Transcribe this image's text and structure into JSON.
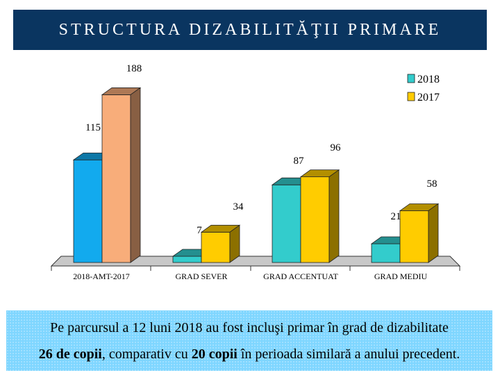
{
  "header": {
    "title": "STRUCTURA DIZABILITĂŢII PRIMARE"
  },
  "chart_data": {
    "type": "bar",
    "categories": [
      "2018-AMT-2017",
      "GRAD SEVER",
      "GRAD ACCENTUAT",
      "GRAD MEDIU"
    ],
    "series": [
      {
        "name": "2018",
        "values": [
          115,
          7,
          87,
          21
        ]
      },
      {
        "name": "2017",
        "values": [
          188,
          34,
          96,
          58
        ]
      }
    ],
    "title": "",
    "xlabel": "",
    "ylabel": "",
    "ylim": [
      0,
      200
    ],
    "grid": false,
    "legend_position": "top-right",
    "colors": {
      "2018_default": "#12aaee",
      "2018_others": "#33cccc",
      "2017_default": "#ffcc00",
      "2017_first": "#f8ad7a"
    }
  },
  "note": {
    "line1": "Pe parcursul a 12 luni 2018 au fost incluşi primar în grad de dizabilitate",
    "line2_bold1": "26 de copii",
    "line2_mid": ", comparativ cu ",
    "line2_bold2": "20 copii",
    "line2_end": " în perioada similară a anului precedent."
  }
}
